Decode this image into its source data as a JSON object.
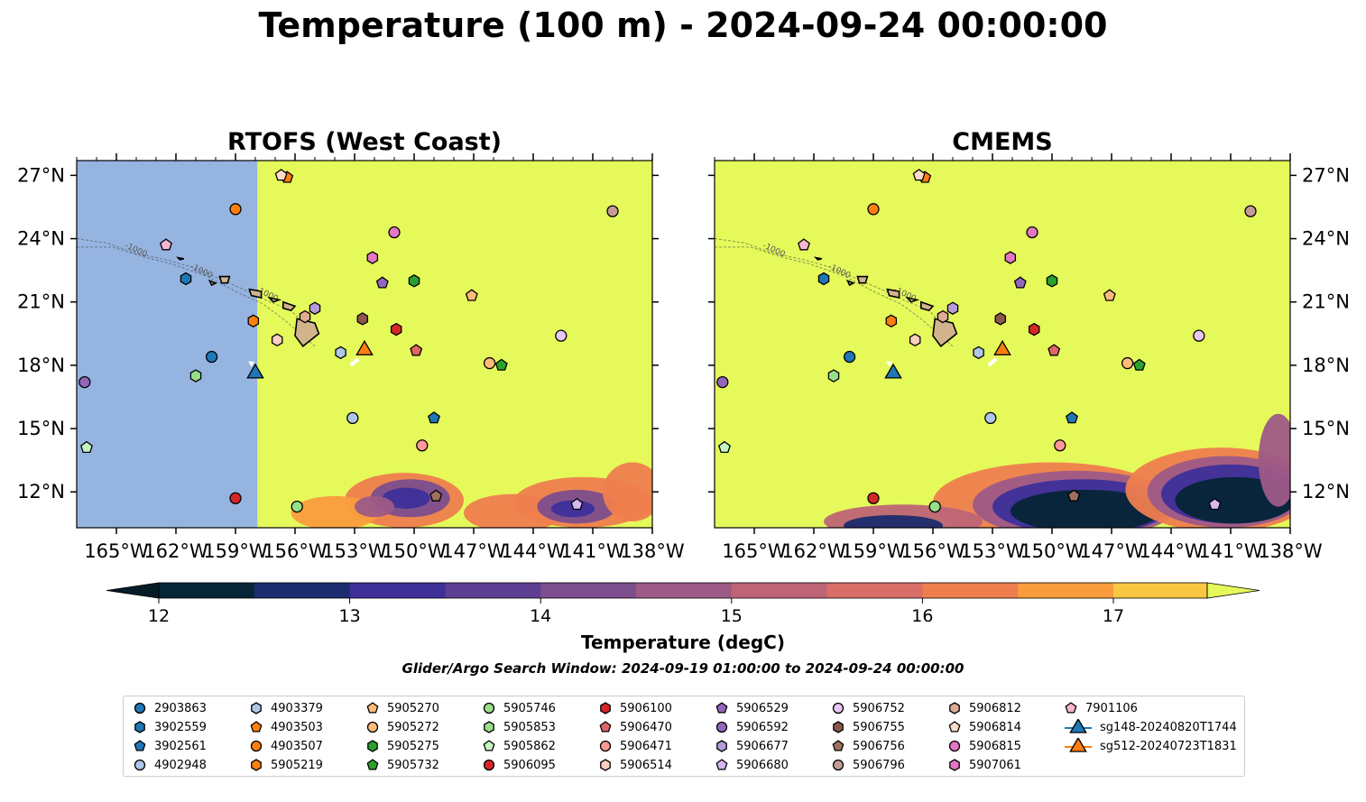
{
  "title": "Temperature (100 m) - 2024-09-24 00:00:00",
  "panels": [
    {
      "title": "RTOFS (West Coast)"
    },
    {
      "title": "CMEMS"
    }
  ],
  "map": {
    "lon_range": [
      -167.0,
      -138.0
    ],
    "lat_range": [
      10.3,
      27.7
    ],
    "lon_ticks": [
      -165,
      -162,
      -159,
      -156,
      -153,
      -150,
      -147,
      -144,
      -141,
      -138
    ],
    "lon_tick_labels": [
      "165°W",
      "162°W",
      "159°W",
      "156°W",
      "153°W",
      "150°W",
      "147°W",
      "144°W",
      "141°W",
      "138°W"
    ],
    "lat_ticks": [
      12,
      15,
      18,
      21,
      24,
      27
    ],
    "lat_tick_labels": [
      "12°N",
      "15°N",
      "18°N",
      "21°N",
      "24°N",
      "27°N"
    ],
    "land_color": "#d2b48c",
    "field_warm_color": "#e5f95b",
    "rtofs_nodata_color": "#96b4e0",
    "rtofs_data_west_edge_lon": -157.9,
    "bathymetry_contour_label": "-1000"
  },
  "colorbar": {
    "label": "Temperature (degC)",
    "ticks": [
      12,
      13,
      14,
      15,
      16,
      17
    ],
    "range": [
      11.75,
      17.5
    ],
    "colors": [
      "#062536",
      "#1c2c6e",
      "#3e2f99",
      "#5c3f92",
      "#7c4e8d",
      "#9d5a87",
      "#bd6477",
      "#d96d68",
      "#ef7e4e",
      "#f99c3d",
      "#f8c842"
    ],
    "under_color": "#041b28",
    "over_color": "#e5f95b"
  },
  "search_window": "Glider/Argo Search Window: 2024-09-19 01:00:00 to 2024-09-24 00:00:00",
  "floats": [
    {
      "id": "2903863",
      "marker": "circle",
      "color": "#1f77b4",
      "lon": -160.2,
      "lat": 18.4
    },
    {
      "id": "3902559",
      "marker": "hexagon",
      "color": "#1f77b4",
      "lon": -161.5,
      "lat": 22.1
    },
    {
      "id": "3902561",
      "marker": "pentagon",
      "color": "#1f77b4",
      "lon": -149.0,
      "lat": 15.5
    },
    {
      "id": "4902948",
      "marker": "circle",
      "color": "#aec7e8",
      "lon": -153.1,
      "lat": 15.5
    },
    {
      "id": "4903379",
      "marker": "hexagon",
      "color": "#aec7e8",
      "lon": -153.7,
      "lat": 18.6
    },
    {
      "id": "4903503",
      "marker": "pentagon",
      "color": "#ff7f0e",
      "lon": -156.4,
      "lat": 26.9
    },
    {
      "id": "4903507",
      "marker": "circle",
      "color": "#ff7f0e",
      "lon": -159.0,
      "lat": 25.4
    },
    {
      "id": "5905219",
      "marker": "hexagon",
      "color": "#ff7f0e",
      "lon": -158.1,
      "lat": 20.1
    },
    {
      "id": "5905270",
      "marker": "pentagon",
      "color": "#ffbb78",
      "lon": -147.1,
      "lat": 21.3
    },
    {
      "id": "5905272",
      "marker": "circle",
      "color": "#ffbb78",
      "lon": -146.2,
      "lat": 18.1
    },
    {
      "id": "5905275",
      "marker": "hexagon",
      "color": "#2ca02c",
      "lon": -150.0,
      "lat": 22.0
    },
    {
      "id": "5905732",
      "marker": "pentagon",
      "color": "#2ca02c",
      "lon": -145.6,
      "lat": 18.0
    },
    {
      "id": "5905746",
      "marker": "circle",
      "color": "#98df8a",
      "lon": -155.9,
      "lat": 11.3
    },
    {
      "id": "5905853",
      "marker": "hexagon",
      "color": "#98df8a",
      "lon": -161.0,
      "lat": 17.5
    },
    {
      "id": "5905862",
      "marker": "pentagon",
      "color": "#c5f5c0",
      "lon": -166.5,
      "lat": 14.1
    },
    {
      "id": "5906095",
      "marker": "circle",
      "color": "#d62728",
      "lon": -159.0,
      "lat": 11.7
    },
    {
      "id": "5906100",
      "marker": "hexagon",
      "color": "#d62728",
      "lon": -150.9,
      "lat": 19.7
    },
    {
      "id": "5906470",
      "marker": "pentagon",
      "color": "#e06666",
      "lon": -149.9,
      "lat": 18.7
    },
    {
      "id": "5906471",
      "marker": "circle",
      "color": "#ff9896",
      "lon": -149.6,
      "lat": 14.2
    },
    {
      "id": "5906514",
      "marker": "hexagon",
      "color": "#ffcfc0",
      "lon": -156.9,
      "lat": 19.2
    },
    {
      "id": "5906529",
      "marker": "pentagon",
      "color": "#9467bd",
      "lon": -151.6,
      "lat": 21.9
    },
    {
      "id": "5906592",
      "marker": "circle",
      "color": "#9467bd",
      "lon": -166.6,
      "lat": 17.2
    },
    {
      "id": "5906677",
      "marker": "hexagon",
      "color": "#b89ad9",
      "lon": -155.0,
      "lat": 20.7
    },
    {
      "id": "5906680",
      "marker": "pentagon",
      "color": "#d5b8f0",
      "lon": -141.8,
      "lat": 11.4
    },
    {
      "id": "5906752",
      "marker": "circle",
      "color": "#e8c6f5",
      "lon": -142.6,
      "lat": 19.4
    },
    {
      "id": "5906755",
      "marker": "hexagon",
      "color": "#8c564b",
      "lon": -152.6,
      "lat": 20.2
    },
    {
      "id": "5906756",
      "marker": "pentagon",
      "color": "#a0705f",
      "lon": -148.9,
      "lat": 11.8
    },
    {
      "id": "5906796",
      "marker": "circle",
      "color": "#c49c94",
      "lon": -140.0,
      "lat": 25.3
    },
    {
      "id": "5906812",
      "marker": "hexagon",
      "color": "#e0ab95",
      "lon": -155.5,
      "lat": 20.3
    },
    {
      "id": "5906814",
      "marker": "pentagon",
      "color": "#ffdcc8",
      "lon": -156.7,
      "lat": 27.0
    },
    {
      "id": "5906815",
      "marker": "circle",
      "color": "#e377c2",
      "lon": -151.0,
      "lat": 24.3
    },
    {
      "id": "5907061",
      "marker": "hexagon",
      "color": "#e377c2",
      "lon": -152.1,
      "lat": 23.1
    },
    {
      "id": "7901106",
      "marker": "pentagon",
      "color": "#f7b6d2",
      "lon": -162.5,
      "lat": 23.7
    }
  ],
  "gliders": [
    {
      "id": "sg148-20240820T1744",
      "marker": "triangle",
      "color": "#1f77b4",
      "lon": -158.0,
      "lat": 17.7
    },
    {
      "id": "sg512-20240723T1831",
      "marker": "triangle",
      "color": "#ff7f0e",
      "lon": -152.5,
      "lat": 18.8
    }
  ]
}
